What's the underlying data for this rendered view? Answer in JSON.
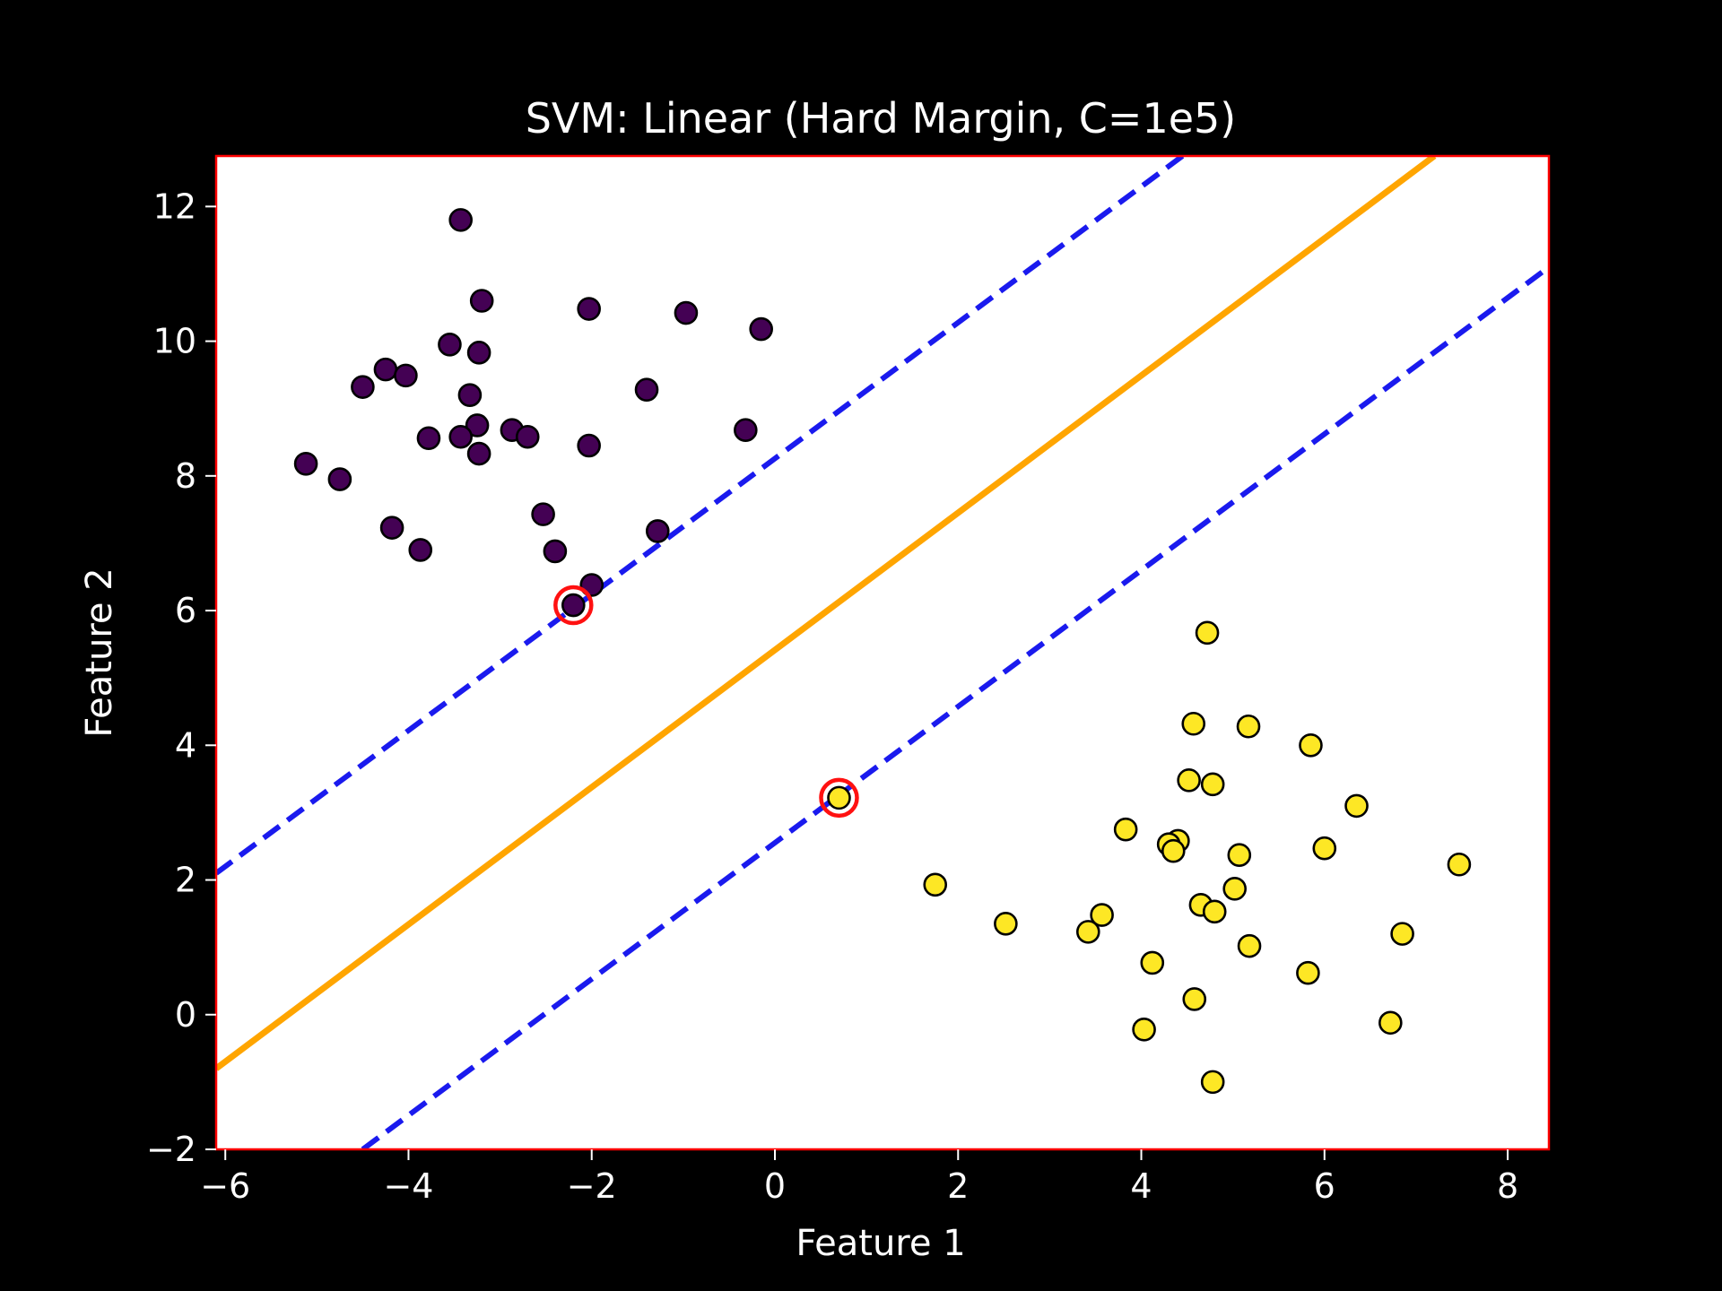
{
  "chart_data": {
    "type": "scatter",
    "title": "SVM: Linear (Hard Margin, C=1e5)",
    "xlabel": "Feature 1",
    "ylabel": "Feature 2",
    "xlim": [
      -6.1,
      8.45
    ],
    "ylim": [
      -2.0,
      12.75
    ],
    "xticks": [
      {
        "value": -6,
        "label": "−6"
      },
      {
        "value": -4,
        "label": "−4"
      },
      {
        "value": -2,
        "label": "−2"
      },
      {
        "value": 0,
        "label": "0"
      },
      {
        "value": 2,
        "label": "2"
      },
      {
        "value": 4,
        "label": "4"
      },
      {
        "value": 6,
        "label": "6"
      },
      {
        "value": 8,
        "label": "8"
      }
    ],
    "yticks": [
      {
        "value": -2,
        "label": "−2"
      },
      {
        "value": 0,
        "label": "0"
      },
      {
        "value": 2,
        "label": "2"
      },
      {
        "value": 4,
        "label": "4"
      },
      {
        "value": 6,
        "label": "6"
      },
      {
        "value": 8,
        "label": "8"
      },
      {
        "value": 10,
        "label": "10"
      },
      {
        "value": 12,
        "label": "12"
      }
    ],
    "grid": false,
    "colors": {
      "class_0": "#440154",
      "class_1": "#fde725",
      "decision_boundary": "#ffa500",
      "margin": "#1a1aee",
      "support_vector_ring": "#ff1111",
      "plot_frame": "#ff0000",
      "plot_background": "#ffffff",
      "figure_background": "#000000"
    },
    "decision_boundary": {
      "x": [
        -6.1,
        7.2
      ],
      "y": [
        -0.8,
        12.75
      ]
    },
    "margins": [
      {
        "x": [
          -6.1,
          4.45
        ],
        "y": [
          2.1,
          12.75
        ]
      },
      {
        "x": [
          -4.5,
          8.45
        ],
        "y": [
          -2.0,
          11.1
        ]
      }
    ],
    "support_vectors": [
      {
        "x": -2.2,
        "y": 6.08
      },
      {
        "x": 0.7,
        "y": 3.22
      }
    ],
    "series": [
      {
        "class": 0,
        "points": [
          [
            -3.43,
            11.8
          ],
          [
            -3.2,
            10.6
          ],
          [
            -2.03,
            10.48
          ],
          [
            -0.97,
            10.42
          ],
          [
            -0.15,
            10.18
          ],
          [
            -3.55,
            9.95
          ],
          [
            -3.23,
            9.83
          ],
          [
            -4.25,
            9.58
          ],
          [
            -4.03,
            9.49
          ],
          [
            -4.5,
            9.32
          ],
          [
            -3.33,
            9.2
          ],
          [
            -1.4,
            9.28
          ],
          [
            -3.25,
            8.75
          ],
          [
            -2.87,
            8.68
          ],
          [
            -2.7,
            8.58
          ],
          [
            -3.78,
            8.56
          ],
          [
            -3.43,
            8.58
          ],
          [
            -2.03,
            8.45
          ],
          [
            -0.32,
            8.68
          ],
          [
            -3.23,
            8.33
          ],
          [
            -5.12,
            8.18
          ],
          [
            -4.75,
            7.95
          ],
          [
            -2.53,
            7.43
          ],
          [
            -4.18,
            7.23
          ],
          [
            -1.28,
            7.18
          ],
          [
            -3.87,
            6.9
          ],
          [
            -2.4,
            6.88
          ],
          [
            -2.0,
            6.38
          ],
          [
            -2.2,
            6.08
          ]
        ]
      },
      {
        "class": 1,
        "points": [
          [
            4.72,
            5.67
          ],
          [
            4.57,
            4.32
          ],
          [
            5.17,
            4.28
          ],
          [
            5.85,
            4.0
          ],
          [
            4.52,
            3.48
          ],
          [
            4.78,
            3.42
          ],
          [
            6.35,
            3.1
          ],
          [
            0.7,
            3.22
          ],
          [
            3.83,
            2.75
          ],
          [
            4.4,
            2.58
          ],
          [
            4.3,
            2.53
          ],
          [
            4.35,
            2.43
          ],
          [
            6.0,
            2.47
          ],
          [
            5.07,
            2.37
          ],
          [
            7.47,
            2.23
          ],
          [
            1.75,
            1.93
          ],
          [
            5.02,
            1.87
          ],
          [
            4.65,
            1.63
          ],
          [
            4.8,
            1.53
          ],
          [
            2.52,
            1.35
          ],
          [
            3.57,
            1.48
          ],
          [
            3.42,
            1.23
          ],
          [
            6.85,
            1.2
          ],
          [
            5.18,
            1.02
          ],
          [
            4.12,
            0.77
          ],
          [
            5.82,
            0.62
          ],
          [
            4.58,
            0.23
          ],
          [
            4.03,
            -0.22
          ],
          [
            6.72,
            -0.12
          ],
          [
            4.78,
            -1.0
          ]
        ]
      }
    ]
  }
}
